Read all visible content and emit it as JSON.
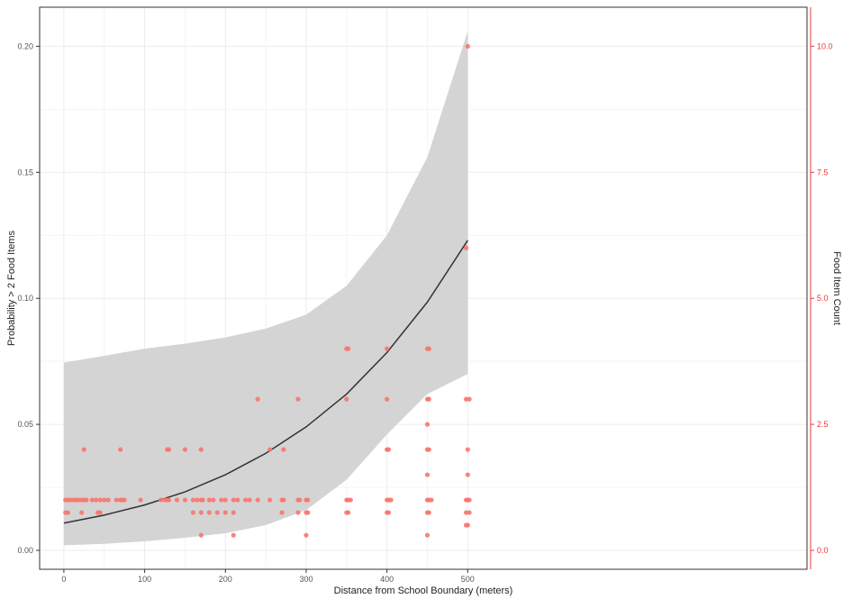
{
  "chart_data": {
    "type": "scatter",
    "x_axis": {
      "label": "Distance from School Boundary (meters)",
      "range": [
        -30,
        920
      ],
      "ticks": [
        0,
        100,
        200,
        300,
        400,
        500
      ],
      "tick_labels": [
        "0",
        "100",
        "200",
        "300",
        "400",
        "500"
      ]
    },
    "y_axis_left": {
      "label": "Probability > 2 Food Items",
      "range": [
        -0.0075,
        0.2155
      ],
      "ticks": [
        0.0,
        0.05,
        0.1,
        0.15,
        0.2
      ],
      "tick_labels": [
        "0.00",
        "0.05",
        "0.10",
        "0.15",
        "0.20"
      ]
    },
    "y_axis_right": {
      "label": "Food Item Count",
      "color": "#e8393a",
      "range": [
        -0.375,
        10.775
      ],
      "ticks": [
        0,
        2.5,
        5,
        7.5,
        10
      ],
      "tick_labels": [
        "0.0",
        "2.5",
        "5.0",
        "7.5",
        "10.0"
      ]
    },
    "grid": true,
    "colors": {
      "curve": "#333333",
      "band": "#d4d4d4",
      "points": "#f8766d",
      "right_axis": "#e8393a"
    },
    "fitted_curve": {
      "x": [
        0,
        50,
        100,
        150,
        200,
        250,
        300,
        350,
        400,
        450,
        500
      ],
      "y": [
        0.0108,
        0.014,
        0.018,
        0.0232,
        0.03,
        0.0385,
        0.049,
        0.062,
        0.0785,
        0.0985,
        0.123
      ],
      "lower": [
        0.002,
        0.0026,
        0.0036,
        0.005,
        0.0068,
        0.01,
        0.016,
        0.028,
        0.046,
        0.062,
        0.07
      ],
      "upper": [
        0.0745,
        0.0772,
        0.08,
        0.082,
        0.0845,
        0.088,
        0.0935,
        0.105,
        0.125,
        0.156,
        0.206
      ]
    },
    "points": {
      "x": [
        2,
        5,
        8,
        12,
        15,
        18,
        22,
        25,
        28,
        35,
        40,
        45,
        50,
        55,
        65,
        70,
        72,
        75,
        95,
        120,
        125,
        128,
        130,
        140,
        150,
        160,
        165,
        170,
        172,
        180,
        185,
        195,
        200,
        210,
        215,
        225,
        230,
        240,
        255,
        270,
        272,
        290,
        292,
        300,
        302,
        350,
        352,
        355,
        400,
        402,
        405,
        450,
        452,
        455,
        498,
        500,
        502,
        2,
        5,
        22,
        42,
        45,
        160,
        170,
        180,
        190,
        200,
        210,
        270,
        290,
        300,
        302,
        350,
        352,
        400,
        402,
        450,
        452,
        498,
        502,
        170,
        210,
        300,
        450,
        25,
        70,
        128,
        130,
        150,
        170,
        255,
        272,
        400,
        402,
        450,
        452,
        500,
        240,
        290,
        350,
        400,
        450,
        452,
        498,
        502,
        350,
        352,
        400,
        450,
        452,
        500,
        498,
        500,
        450,
        450,
        498,
        500
      ],
      "y": [
        1,
        1,
        1,
        1,
        1,
        1,
        1,
        1,
        1,
        1,
        1,
        1,
        1,
        1,
        1,
        1,
        1,
        1,
        1,
        1,
        1,
        1,
        1,
        1,
        1,
        1,
        1,
        1,
        1,
        1,
        1,
        1,
        1,
        1,
        1,
        1,
        1,
        1,
        1,
        1,
        1,
        1,
        1,
        1,
        1,
        1,
        1,
        1,
        1,
        1,
        1,
        1,
        1,
        1,
        1,
        1,
        1,
        0.75,
        0.75,
        0.75,
        0.75,
        0.75,
        0.75,
        0.75,
        0.75,
        0.75,
        0.75,
        0.75,
        0.75,
        0.75,
        0.75,
        0.75,
        0.75,
        0.75,
        0.75,
        0.75,
        0.75,
        0.75,
        0.75,
        0.75,
        0.3,
        0.3,
        0.3,
        0.3,
        2,
        2,
        2,
        2,
        2,
        2,
        2,
        2,
        2,
        2,
        2,
        2,
        2,
        3,
        3,
        3,
        3,
        3,
        3,
        3,
        3,
        4,
        4,
        4,
        4,
        4,
        10,
        6,
        1.5,
        1.5,
        2.5,
        0.5,
        0.5
      ]
    }
  }
}
